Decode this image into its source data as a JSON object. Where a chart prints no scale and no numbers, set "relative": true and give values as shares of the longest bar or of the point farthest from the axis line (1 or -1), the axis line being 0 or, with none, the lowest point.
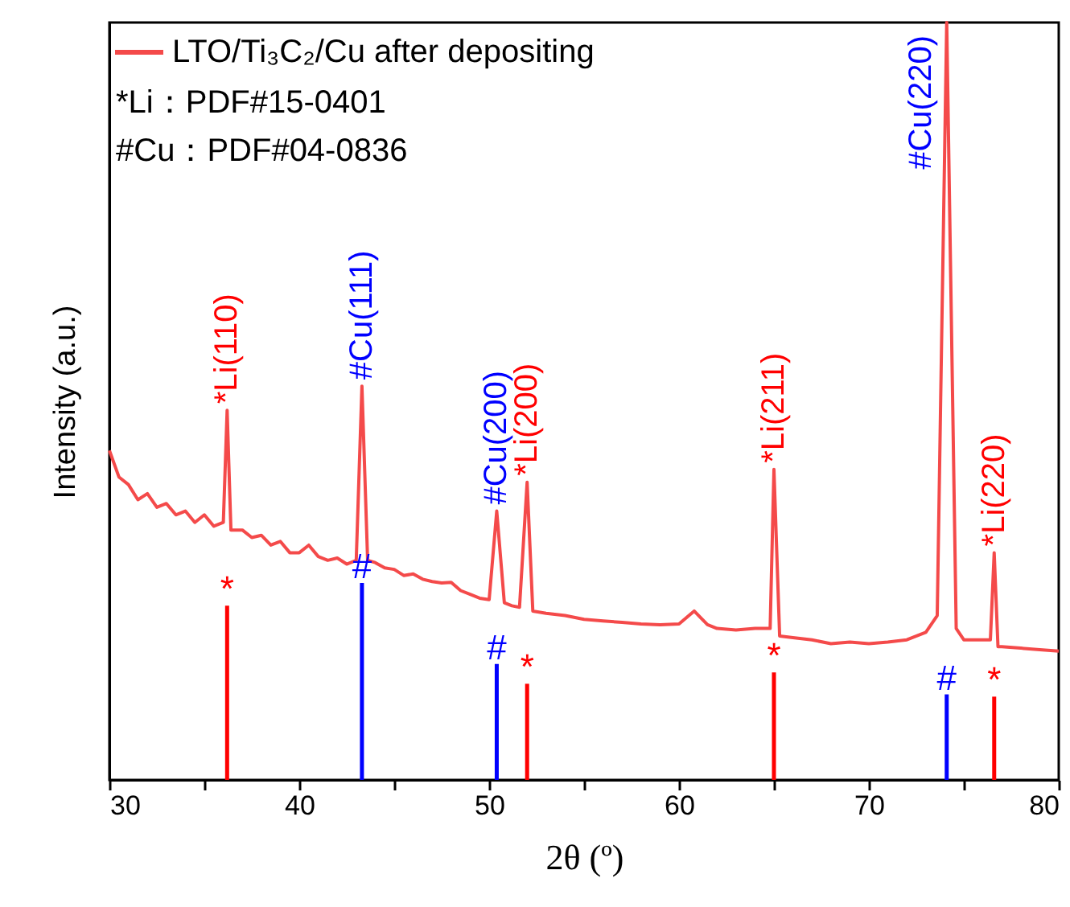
{
  "chart_data": {
    "type": "line",
    "relative": true,
    "xlabel": "2θ (º)",
    "ylabel": "Intensity (a.u.)",
    "xlim": [
      30,
      80
    ],
    "xticks": [
      30,
      {
        "value": 35,
        "label": null
      },
      40,
      {
        "value": 45,
        "label": null
      },
      50,
      {
        "value": 55,
        "label": null
      },
      60,
      {
        "value": 65,
        "label": null
      },
      70,
      {
        "value": 75,
        "label": null
      },
      80
    ],
    "tick_labels": "x",
    "legend": "top left",
    "grid": false,
    "series": [
      {
        "name": "LTO/Ti₃C₂/Cu after depositing",
        "color": "#f44a4a",
        "x": [
          30,
          30.5,
          31,
          31.5,
          32,
          32.5,
          33,
          33.5,
          34,
          34.5,
          35,
          35.5,
          36,
          36.2,
          36.4,
          37,
          37.5,
          38,
          38.5,
          39,
          39.5,
          40,
          40.5,
          41,
          41.5,
          42,
          42.5,
          43,
          43.3,
          43.6,
          44,
          44.5,
          45,
          45.5,
          46,
          46.5,
          47,
          47.5,
          48,
          48.5,
          49,
          49.5,
          50,
          50.4,
          50.8,
          51.2,
          51.6,
          52,
          52.3,
          53,
          54,
          55,
          56,
          57,
          58,
          59,
          60,
          60.8,
          61.5,
          62,
          63,
          64,
          64.8,
          65,
          65.3,
          66,
          67,
          68,
          69,
          70,
          71,
          72,
          73,
          73.6,
          74.1,
          74.6,
          75,
          76,
          76.4,
          76.6,
          76.8,
          77,
          78,
          79,
          80
        ],
        "values": [
          0.435,
          0.4,
          0.39,
          0.37,
          0.378,
          0.36,
          0.365,
          0.35,
          0.355,
          0.34,
          0.35,
          0.335,
          0.34,
          0.488,
          0.33,
          0.33,
          0.32,
          0.323,
          0.31,
          0.315,
          0.3,
          0.3,
          0.31,
          0.295,
          0.29,
          0.293,
          0.285,
          0.29,
          0.52,
          0.29,
          0.287,
          0.28,
          0.278,
          0.27,
          0.272,
          0.265,
          0.262,
          0.26,
          0.261,
          0.25,
          0.245,
          0.24,
          0.238,
          0.355,
          0.234,
          0.23,
          0.228,
          0.393,
          0.223,
          0.22,
          0.217,
          0.212,
          0.21,
          0.208,
          0.206,
          0.205,
          0.206,
          0.223,
          0.205,
          0.2,
          0.198,
          0.2,
          0.2,
          0.41,
          0.19,
          0.188,
          0.185,
          0.18,
          0.182,
          0.18,
          0.182,
          0.185,
          0.195,
          0.217,
          1,
          0.2,
          0.185,
          0.185,
          0.185,
          0.3,
          0.176,
          0.176,
          0.174,
          0.172,
          0.17
        ]
      },
      {
        "type": "bar",
        "color": "#ff0000",
        "x": [
          36.2,
          52,
          65,
          76.6
        ],
        "values": [
          0.23,
          0.127,
          0.142,
          0.11
        ]
      },
      {
        "type": "bar",
        "color": "#0000ff",
        "x": [
          43.3,
          50.4,
          74.1
        ],
        "values": [
          0.26,
          0.153,
          0.113
        ]
      }
    ],
    "annotations": [
      "*Li：PDF#15-0401",
      "#Cu：PDF#04-0836",
      {
        "text": "*Li(110)",
        "x": 36.2,
        "y": 0.488
      },
      {
        "text": "#Cu(111)",
        "x": 43.3,
        "y": 0.52
      },
      {
        "text": "#Cu(200)",
        "x": 50.4,
        "y": 0.355
      },
      {
        "text": "*Li(200)",
        "x": 52,
        "y": 0.393
      },
      {
        "text": "*Li(211)",
        "x": 65,
        "y": 0.41
      },
      {
        "text": "#Cu(220)",
        "x": 74.1,
        "y": 1
      },
      {
        "text": "*Li(220)",
        "x": 76.6,
        "y": 0.3
      },
      {
        "text": "*",
        "x": 36.2,
        "y": 0.23
      },
      {
        "text": "#",
        "x": 43.3,
        "y": 0.26
      },
      {
        "text": "#",
        "x": 50.4,
        "y": 0.153
      },
      {
        "text": "*",
        "x": 52,
        "y": 0.127
      },
      {
        "text": "*",
        "x": 65,
        "y": 0.142
      },
      {
        "text": "#",
        "x": 74.1,
        "y": 0.113
      },
      {
        "text": "*",
        "x": 76.6,
        "y": 0.11
      }
    ]
  }
}
